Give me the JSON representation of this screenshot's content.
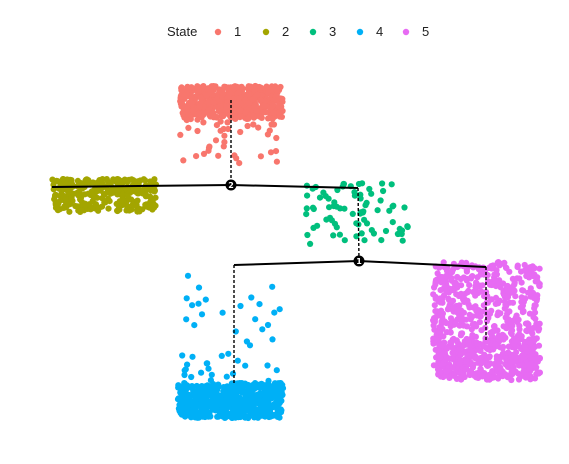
{
  "chart_data": {
    "type": "scatter",
    "title": "",
    "xlabel": "",
    "ylabel": "",
    "legend": {
      "title": "State",
      "position": "top",
      "entries": [
        {
          "label": "1",
          "color": "#F8766D"
        },
        {
          "label": "2",
          "color": "#A3A500"
        },
        {
          "label": "3",
          "color": "#00BF7D"
        },
        {
          "label": "4",
          "color": "#00B0F6"
        },
        {
          "label": "5",
          "color": "#E76BF3"
        }
      ]
    },
    "axes_visible": false,
    "grid": false,
    "branch_nodes": [
      "2",
      "1"
    ]
  }
}
